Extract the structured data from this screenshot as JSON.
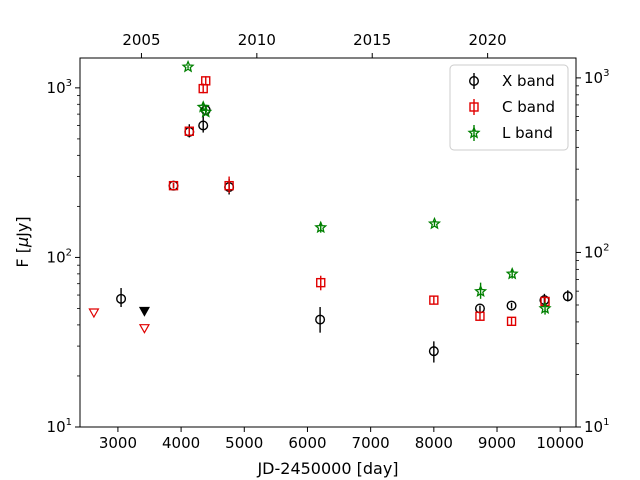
{
  "chart_data": {
    "type": "scatter",
    "title": "",
    "xlabel": "JD-2450000 [day]",
    "ylabel": "F [μJy]",
    "ylabel_parts": {
      "prefix": "F [",
      "mu": "μ",
      "suffix": "Jy]"
    },
    "x_range": [
      2400,
      10250
    ],
    "y_range": [
      10,
      1500
    ],
    "yscale": "log",
    "x_ticks": [
      {
        "v": 3000,
        "label": "3000"
      },
      {
        "v": 4000,
        "label": "4000"
      },
      {
        "v": 5000,
        "label": "5000"
      },
      {
        "v": 6000,
        "label": "6000"
      },
      {
        "v": 7000,
        "label": "7000"
      },
      {
        "v": 8000,
        "label": "8000"
      },
      {
        "v": 9000,
        "label": "9000"
      },
      {
        "v": 10000,
        "label": "10000"
      }
    ],
    "top_ticks": [
      {
        "v": 3372.5,
        "label": "2005"
      },
      {
        "v": 5198.75,
        "label": "2010"
      },
      {
        "v": 7025,
        "label": "2015"
      },
      {
        "v": 8851.25,
        "label": "2020"
      }
    ],
    "y_ticks": [
      {
        "v": 10,
        "base": "10",
        "exp": "1"
      },
      {
        "v": 100,
        "base": "10",
        "exp": "2"
      },
      {
        "v": 1000,
        "base": "10",
        "exp": "3"
      }
    ],
    "right_y_range": [
      10,
      1300
    ],
    "right_y_ticks": [
      {
        "v": 10,
        "base": "10",
        "exp": "1"
      },
      {
        "v": 100,
        "base": "10",
        "exp": "2"
      },
      {
        "v": 1000,
        "base": "10",
        "exp": "3"
      }
    ],
    "legend": {
      "position": "top-right",
      "entries": [
        "X band",
        "C band",
        "L band"
      ]
    },
    "grid": false,
    "series": [
      {
        "name": "X band",
        "marker": "circle",
        "color": "#000000",
        "points": [
          {
            "x": 3050,
            "y": 57,
            "lo": 51,
            "hi": 66
          },
          {
            "x": 4130,
            "y": 550,
            "lo": 510,
            "hi": 610
          },
          {
            "x": 4350,
            "y": 600,
            "lo": 545,
            "hi": 680
          },
          {
            "x": 4390,
            "y": 740,
            "lo": 700,
            "hi": 790
          },
          {
            "x": 3880,
            "y": 265,
            "lo": 255,
            "hi": 275
          },
          {
            "x": 4760,
            "y": 260,
            "lo": 235,
            "hi": 290
          },
          {
            "x": 6200,
            "y": 43,
            "lo": 36,
            "hi": 51
          },
          {
            "x": 8000,
            "y": 28,
            "lo": 24,
            "hi": 32
          },
          {
            "x": 8730,
            "y": 50,
            "lo": 48,
            "hi": 52
          },
          {
            "x": 9230,
            "y": 52,
            "lo": 50,
            "hi": 54
          },
          {
            "x": 9750,
            "y": 56,
            "lo": 52,
            "hi": 61
          },
          {
            "x": 10120,
            "y": 59,
            "lo": 55,
            "hi": 64
          }
        ],
        "upper_limits": [
          {
            "x": 3420,
            "y": 48,
            "filled": true
          }
        ]
      },
      {
        "name": "C band",
        "marker": "square",
        "color": "#e00000",
        "points": [
          {
            "x": 3880,
            "y": 265,
            "lo": 255,
            "hi": 275
          },
          {
            "x": 4130,
            "y": 555,
            "lo": 525,
            "hi": 590
          },
          {
            "x": 4350,
            "y": 990,
            "lo": 930,
            "hi": 1060
          },
          {
            "x": 4390,
            "y": 1100,
            "lo": 1040,
            "hi": 1170
          },
          {
            "x": 4760,
            "y": 265,
            "lo": 240,
            "hi": 300
          },
          {
            "x": 6210,
            "y": 71,
            "lo": 64,
            "hi": 78
          },
          {
            "x": 8000,
            "y": 56,
            "lo": 53,
            "hi": 59
          },
          {
            "x": 8730,
            "y": 45,
            "lo": 43,
            "hi": 48
          },
          {
            "x": 9230,
            "y": 42,
            "lo": 40,
            "hi": 44
          },
          {
            "x": 9760,
            "y": 55,
            "lo": 52,
            "hi": 59
          }
        ],
        "upper_limits": [
          {
            "x": 2620,
            "y": 47,
            "filled": false
          },
          {
            "x": 3420,
            "y": 38,
            "filled": false
          }
        ]
      },
      {
        "name": "L band",
        "marker": "star",
        "color": "#008000",
        "points": [
          {
            "x": 4110,
            "y": 1330,
            "lo": 1300,
            "hi": 1360
          },
          {
            "x": 4350,
            "y": 770,
            "lo": 730,
            "hi": 810
          },
          {
            "x": 4390,
            "y": 720,
            "lo": 690,
            "hi": 750
          },
          {
            "x": 6210,
            "y": 150,
            "lo": 140,
            "hi": 162
          },
          {
            "x": 8010,
            "y": 158,
            "lo": 152,
            "hi": 164
          },
          {
            "x": 8740,
            "y": 63,
            "lo": 57,
            "hi": 71
          },
          {
            "x": 9240,
            "y": 80,
            "lo": 75,
            "hi": 85
          },
          {
            "x": 9760,
            "y": 50,
            "lo": 46,
            "hi": 54
          }
        ],
        "upper_limits": []
      }
    ]
  }
}
